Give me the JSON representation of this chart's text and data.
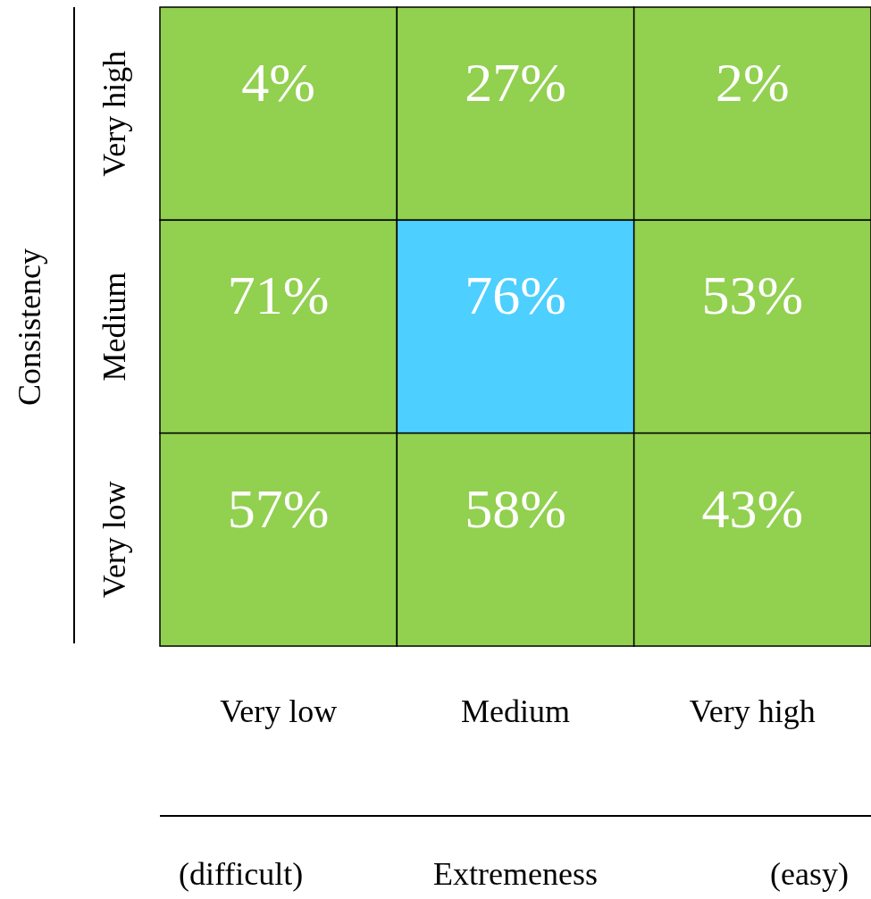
{
  "chart_data": {
    "type": "heatmap",
    "xlabel": "Extremeness",
    "ylabel": "Consistency",
    "categories": [
      "Very low",
      "Medium",
      "Very high"
    ],
    "y_categories": [
      "Very high",
      "Medium",
      "Very low"
    ],
    "cells": [
      [
        4,
        27,
        2
      ],
      [
        71,
        76,
        53
      ],
      [
        57,
        58,
        43
      ]
    ],
    "cell_labels": [
      [
        "4%",
        "27%",
        "2%"
      ],
      [
        "71%",
        "76%",
        "53%"
      ],
      [
        "57%",
        "58%",
        "43%"
      ]
    ],
    "colors": [
      "#92d050",
      "#4dcfff"
    ],
    "annotations": [
      "(difficult)",
      "(easy)"
    ]
  }
}
